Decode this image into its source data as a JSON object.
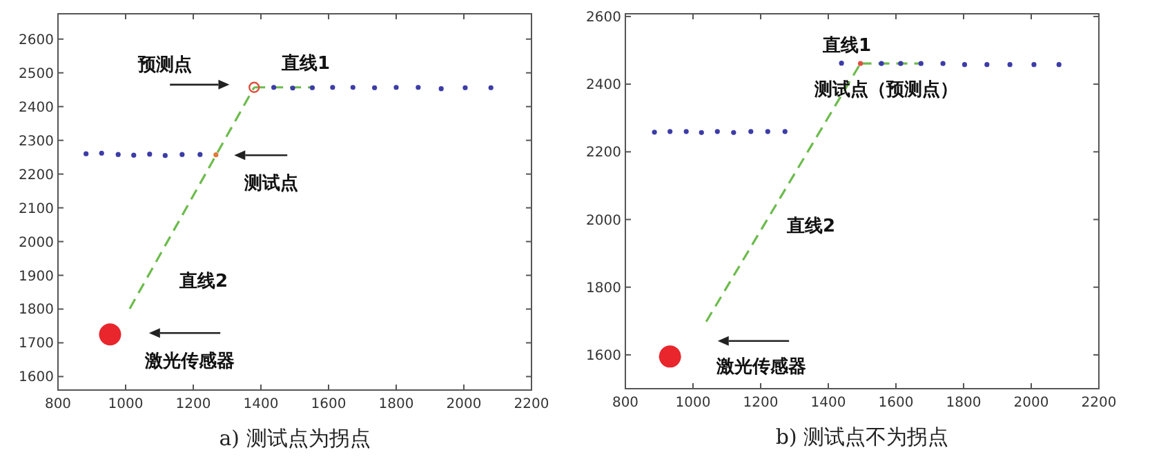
{
  "chart_data": [
    {
      "type": "scatter",
      "title": "a) 测试点为拐点",
      "xlim": [
        800,
        2200
      ],
      "ylim": [
        1560,
        2675
      ],
      "xticks": [
        800,
        1000,
        1200,
        1400,
        1600,
        1800,
        2000,
        2200
      ],
      "yticks": [
        1600,
        1700,
        1800,
        1900,
        2000,
        2100,
        2200,
        2300,
        2400,
        2500,
        2600
      ],
      "grid": false,
      "series": [
        {
          "type": "scatter",
          "color": "#3c3ca8",
          "x": [
            883,
            929,
            978,
            1024,
            1071,
            1117,
            1167,
            1220,
            1438,
            1494,
            1552,
            1612,
            1672,
            1736,
            1800,
            1865,
            1933,
            2004,
            2080
          ],
          "values": [
            2260,
            2262,
            2258,
            2256,
            2259,
            2255,
            2258,
            2258,
            2457,
            2455,
            2456,
            2457,
            2457,
            2456,
            2457,
            2457,
            2453,
            2456,
            2456
          ]
        },
        {
          "type": "line",
          "color": "#6cbb4c",
          "line_style": "dashed",
          "x": [
            1012,
            1380
          ],
          "values": [
            1801,
            2457
          ]
        },
        {
          "type": "line",
          "color": "#6cbb4c",
          "line_style": "dashed",
          "x": [
            1380,
            1552
          ],
          "values": [
            2457,
            2457
          ]
        },
        {
          "type": "scatter",
          "color": "#e07a3a",
          "x": [
            1267
          ],
          "values": [
            2257
          ]
        },
        {
          "type": "scatter",
          "marker": "circle",
          "color": "#e05040",
          "x": [
            1380
          ],
          "values": [
            2457
          ]
        },
        {
          "type": "bubble",
          "color": "#e8262c",
          "x": [
            954
          ],
          "values": [
            1725
          ],
          "sizes": [
            1
          ]
        }
      ],
      "annotations": [
        "预测点",
        "直线1",
        "测试点",
        "直线2",
        "激光传感器"
      ]
    },
    {
      "type": "scatter",
      "title": "b) 测试点不为拐点",
      "xlim": [
        800,
        2200
      ],
      "ylim": [
        1500,
        2608
      ],
      "xticks": [
        800,
        1000,
        1200,
        1400,
        1600,
        1800,
        2000,
        2200
      ],
      "yticks": [
        1600,
        1800,
        2000,
        2200,
        2400,
        2600
      ],
      "grid": false,
      "series": [
        {
          "type": "scatter",
          "color": "#3c3ca8",
          "x": [
            886,
            932,
            980,
            1025,
            1072,
            1120,
            1171,
            1221,
            1272,
            1439,
            1557,
            1614,
            1674,
            1739,
            1803,
            1869,
            1937,
            2008,
            2082
          ],
          "values": [
            2258,
            2260,
            2260,
            2257,
            2260,
            2257,
            2260,
            2260,
            2260,
            2462,
            2461,
            2461,
            2461,
            2461,
            2458,
            2458,
            2458,
            2458,
            2458
          ]
        },
        {
          "type": "line",
          "color": "#6cbb4c",
          "line_style": "dashed",
          "x": [
            1039,
            1495
          ],
          "values": [
            1698,
            2461
          ]
        },
        {
          "type": "line",
          "color": "#6cbb4c",
          "line_style": "dashed",
          "x": [
            1495,
            1674
          ],
          "values": [
            2461,
            2461
          ]
        },
        {
          "type": "scatter",
          "color": "#e05040",
          "x": [
            1495
          ],
          "values": [
            2461
          ]
        },
        {
          "type": "bubble",
          "color": "#e8262c",
          "x": [
            932
          ],
          "values": [
            1595
          ],
          "sizes": [
            1
          ]
        }
      ],
      "annotations": [
        "直线1",
        "测试点（预测点）",
        "直线2",
        "激光传感器"
      ]
    }
  ]
}
